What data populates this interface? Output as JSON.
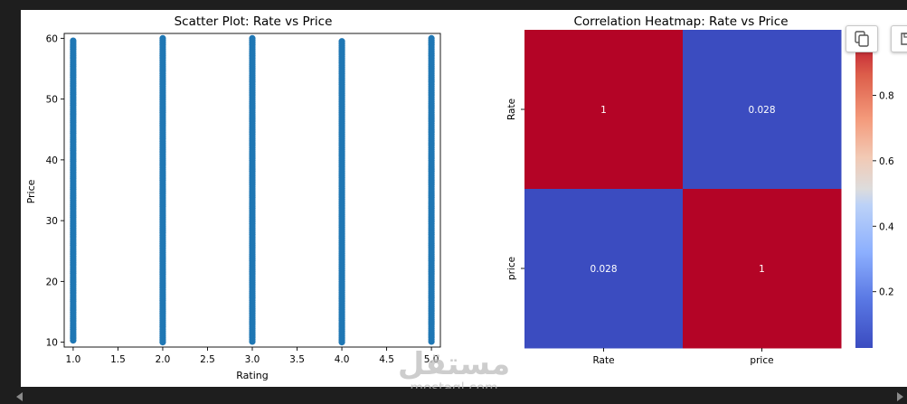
{
  "toolbar": {
    "copy_icon": "copy-icon",
    "save_icon": "save-icon"
  },
  "watermark": {
    "text_arabic": "مستقل",
    "text_latin": "mostaql.com"
  },
  "colors": {
    "background": "#1e1e1e",
    "scatter_point": "#1f77b4",
    "heat_high": "#b40426",
    "heat_low": "#3b4cc0"
  },
  "chart_data": [
    {
      "type": "scatter",
      "title": "Scatter Plot: Rate vs Price",
      "xlabel": "Rating",
      "ylabel": "Price",
      "xlim": [
        0.9,
        5.1
      ],
      "ylim": [
        9.2,
        60.8
      ],
      "xticks": [
        1.0,
        1.5,
        2.0,
        2.5,
        3.0,
        3.5,
        4.0,
        4.5,
        5.0
      ],
      "xtick_labels": [
        "1.0",
        "1.5",
        "2.0",
        "2.5",
        "3.0",
        "3.5",
        "4.0",
        "4.5",
        "5.0"
      ],
      "yticks": [
        10,
        20,
        30,
        40,
        50,
        60
      ],
      "ytick_labels": [
        "10",
        "20",
        "30",
        "40",
        "50",
        "60"
      ],
      "grid": false,
      "series": [
        {
          "x": 1,
          "y_range": [
            10.3,
            59.6
          ]
        },
        {
          "x": 2,
          "y_range": [
            10.0,
            60.0
          ]
        },
        {
          "x": 3,
          "y_range": [
            10.1,
            60.0
          ]
        },
        {
          "x": 4,
          "y_range": [
            10.0,
            59.5
          ]
        },
        {
          "x": 5,
          "y_range": [
            10.1,
            60.0
          ]
        }
      ]
    },
    {
      "type": "heatmap",
      "title": "Correlation Heatmap: Rate vs Price",
      "rows": [
        "Rate",
        "price"
      ],
      "cols": [
        "Rate",
        "price"
      ],
      "values": [
        [
          1,
          0.028
        ],
        [
          0.028,
          1
        ]
      ],
      "annotations": [
        [
          "1",
          "0.028"
        ],
        [
          "0.028",
          "1"
        ]
      ],
      "cmap": "coolwarm",
      "colorbar_ticks": [
        0.2,
        0.4,
        0.6,
        0.8
      ],
      "colorbar_tick_labels": [
        "0.2",
        "0.4",
        "0.6",
        "0.8"
      ],
      "vmin": 0.028,
      "vmax": 1
    }
  ]
}
